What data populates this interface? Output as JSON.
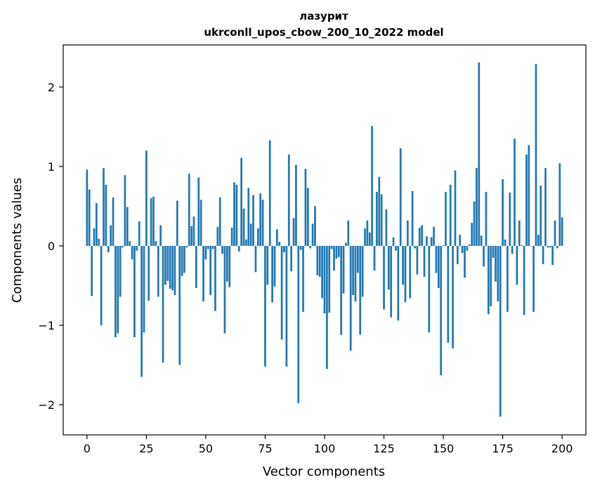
{
  "chart_data": {
    "type": "bar",
    "title": "лазурит",
    "subtitle": "ukrconll_upos_cbow_200_10_2022 model",
    "xlabel": "Vector components",
    "ylabel": "Components values",
    "xlim": [
      -10,
      210
    ],
    "ylim": [
      -2.38,
      2.53
    ],
    "xticks": [
      0,
      25,
      50,
      75,
      100,
      125,
      150,
      175,
      200
    ],
    "yticks": [
      -2,
      -1,
      0,
      1,
      2
    ],
    "ytick_labels": [
      "−2",
      "−1",
      "0",
      "1",
      "2"
    ],
    "grid": false,
    "bar_color": "#1f77b4",
    "series": [
      {
        "values": [
          0.96,
          0.71,
          -0.63,
          0.22,
          0.54,
          0.09,
          -1.0,
          0.98,
          0.77,
          -0.08,
          0.26,
          0.61,
          -1.15,
          -1.1,
          -0.64,
          -0.02,
          0.89,
          0.49,
          0.06,
          -0.17,
          -1.15,
          -0.06,
          0.31,
          -1.65,
          -1.09,
          1.2,
          -0.69,
          0.6,
          0.62,
          0.06,
          -0.64,
          0.26,
          -1.47,
          -0.49,
          -0.44,
          -0.54,
          -0.56,
          -0.62,
          0.57,
          -1.5,
          -0.38,
          -0.34,
          -0.02,
          0.91,
          0.25,
          0.37,
          -0.53,
          0.86,
          0.58,
          -0.7,
          -0.17,
          -0.04,
          -0.62,
          -0.04,
          -0.82,
          0.24,
          0.61,
          -0.1,
          -1.1,
          -0.45,
          -0.52,
          0.23,
          0.8,
          0.77,
          -0.07,
          1.11,
          0.47,
          0.08,
          0.73,
          0.28,
          0.64,
          -0.33,
          0.22,
          0.66,
          0.58,
          -1.52,
          -0.49,
          1.33,
          -0.71,
          -0.51,
          0.21,
          0.05,
          -1.18,
          -0.08,
          -1.52,
          1.15,
          -0.32,
          0.35,
          1.02,
          -1.98,
          -0.05,
          -0.83,
          0.97,
          0.73,
          -0.03,
          0.28,
          0.5,
          -0.37,
          -0.39,
          -0.66,
          -0.85,
          -1.55,
          -0.84,
          -0.04,
          -0.31,
          -0.16,
          -0.14,
          -1.12,
          -0.6,
          0.04,
          0.32,
          -1.32,
          -0.62,
          -0.7,
          -0.34,
          -1.12,
          -0.64,
          0.22,
          0.32,
          0.17,
          1.51,
          -0.31,
          0.68,
          0.87,
          0.65,
          -0.8,
          0.46,
          -0.55,
          -0.9,
          0.11,
          -0.06,
          -0.94,
          1.23,
          -0.49,
          -0.71,
          0.32,
          -0.66,
          0.69,
          -0.03,
          -0.36,
          0.23,
          0.26,
          -0.39,
          0.12,
          -1.09,
          0.11,
          0.24,
          -0.34,
          -0.53,
          -1.63,
          0.01,
          0.68,
          -1.22,
          0.77,
          -1.29,
          0.95,
          -0.23,
          0.14,
          -0.09,
          -0.4,
          -0.06,
          0.02,
          0.29,
          0.56,
          0.98,
          2.31,
          0.13,
          -0.26,
          0.68,
          -0.86,
          -0.76,
          -0.15,
          -0.45,
          -0.7,
          -2.15,
          0.84,
          0.08,
          -0.83,
          0.67,
          -0.1,
          1.35,
          -0.49,
          0.32,
          0.01,
          -0.87,
          1.15,
          1.27,
          0.0,
          -0.83,
          2.29,
          0.14,
          0.76,
          -0.23,
          0.98,
          -0.02,
          -0.02,
          -0.24,
          0.32,
          -0.03,
          1.04,
          0.36
        ]
      }
    ]
  }
}
